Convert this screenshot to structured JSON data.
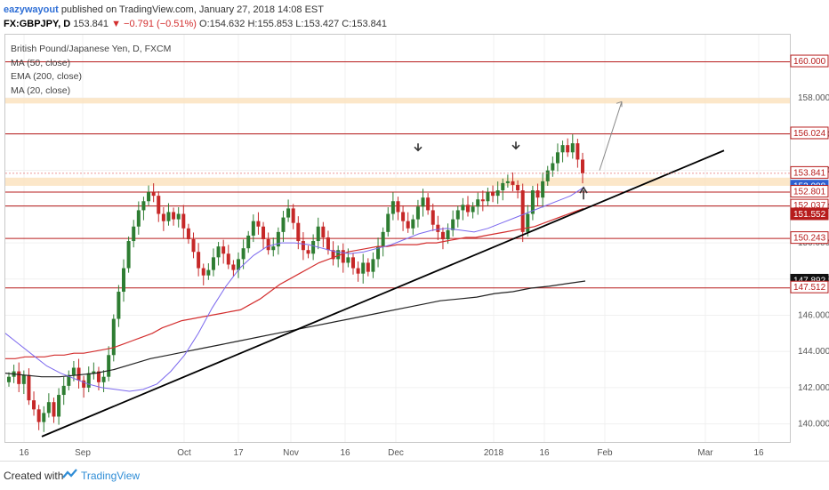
{
  "header": {
    "author": "eazywayout",
    "published_text": "published on TradingView.com, January 27, 2018 14:08 EST",
    "symbol_label": "FX:GBPJPY, D",
    "last": "153.841",
    "change": "▼ −0.791 (−0.51%)",
    "ohlc": "O:154.632 H:155.853 L:153.427 C:153.841"
  },
  "legend": {
    "title": "British Pound/Japanese Yen, D, FXCM",
    "ind1": "MA (50, close)",
    "ind2": "EMA (200, close)",
    "ind3": "MA (20, close)"
  },
  "footer": {
    "created": "Created with",
    "brand": "TradingView"
  },
  "colors": {
    "price_red": "#b71c1c",
    "zone": "#fbe3c0",
    "ma50": "#d32f2f",
    "ema200": "#222222",
    "ma20": "#7b68ee",
    "up": "#2e7d32",
    "down": "#c62828"
  },
  "chart_data": {
    "type": "candlestick",
    "title": "British Pound/Japanese Yen, D, FXCM",
    "xlabel": "",
    "ylabel": "",
    "ylim": [
      138.9,
      161.5
    ],
    "x_ticks": [
      "16",
      "Sep",
      "Oct",
      "17",
      "Nov",
      "16",
      "Dec",
      "2018",
      "16",
      "Feb",
      "Mar",
      "16"
    ],
    "y_ticks": [
      "158.000",
      "156.000",
      "154.000",
      "152.000",
      "150.000",
      "148.000",
      "146.000",
      "144.000",
      "142.000",
      "140.000"
    ],
    "horizontal_levels": [
      160.0,
      156.024,
      152.801,
      152.037,
      150.243,
      147.512
    ],
    "price_labels": [
      {
        "value": 160.0,
        "text": "160.000",
        "style": "red"
      },
      {
        "value": 156.024,
        "text": "156.024",
        "style": "red"
      },
      {
        "value": 153.841,
        "text": "153.841",
        "style": "red"
      },
      {
        "value": 153.088,
        "text": "153.088",
        "style": "blue"
      },
      {
        "value": 152.801,
        "text": "152.801",
        "style": "red"
      },
      {
        "value": 152.037,
        "text": "152.037",
        "style": "red"
      },
      {
        "value": 151.552,
        "text": "151.552",
        "style": "darkred"
      },
      {
        "value": 150.243,
        "text": "150.243",
        "style": "red"
      },
      {
        "value": 147.892,
        "text": "147.892",
        "style": "black"
      },
      {
        "value": 147.512,
        "text": "147.512",
        "style": "red"
      }
    ],
    "zones": [
      [
        157.7,
        158.0
      ],
      [
        153.15,
        153.6
      ]
    ],
    "trendline": [
      [
        0.55,
        139.3
      ],
      [
        12.5,
        155.1
      ]
    ],
    "closes": [
      142.6,
      142.9,
      142.2,
      142.7,
      141.3,
      140.8,
      140.1,
      140.6,
      141.2,
      140.4,
      141.6,
      142.1,
      142.7,
      143.1,
      142.4,
      142.0,
      142.8,
      142.9,
      142.3,
      142.6,
      143.8,
      145.8,
      147.3,
      148.6,
      150.1,
      150.9,
      151.8,
      152.3,
      152.8,
      152.6,
      151.6,
      151.2,
      151.7,
      151.3,
      151.6,
      150.8,
      150.2,
      149.5,
      148.6,
      148.2,
      148.5,
      149.2,
      149.8,
      149.4,
      148.8,
      148.5,
      149.1,
      149.7,
      150.4,
      151.2,
      150.9,
      150.2,
      149.6,
      149.8,
      150.6,
      151.4,
      151.9,
      151.1,
      150.1,
      149.6,
      149.4,
      150.1,
      150.9,
      150.3,
      149.6,
      149.1,
      149.6,
      148.9,
      149.2,
      148.6,
      148.3,
      148.9,
      148.4,
      149.1,
      149.8,
      150.6,
      151.6,
      152.3,
      151.7,
      151.2,
      150.8,
      151.3,
      152.0,
      152.5,
      151.8,
      151.0,
      150.6,
      150.2,
      150.7,
      151.3,
      151.8,
      152.1,
      151.7,
      152.0,
      152.4,
      152.3,
      152.8,
      152.6,
      152.9,
      153.3,
      153.4,
      153.2,
      152.9,
      150.6,
      151.6,
      152.9,
      152.5,
      153.4,
      154.0,
      154.4,
      155.0,
      155.4,
      155.0,
      155.5,
      154.6,
      153.84
    ],
    "ma50": [
      143.6,
      143.6,
      143.7,
      143.7,
      143.7,
      143.8,
      143.8,
      143.9,
      143.9,
      144.0,
      144.1,
      144.2,
      144.4,
      144.6,
      144.8,
      145.0,
      145.3,
      145.5,
      145.7,
      145.8,
      145.9,
      146.0,
      146.1,
      146.2,
      146.3,
      146.6,
      146.9,
      147.3,
      147.7,
      148.0,
      148.3,
      148.6,
      148.9,
      149.1,
      149.3,
      149.5,
      149.6,
      149.7,
      149.8,
      149.8,
      149.9,
      149.9,
      149.9,
      150.0,
      150.0,
      150.1,
      150.2,
      150.3,
      150.3,
      150.4,
      150.5,
      150.6,
      150.7,
      150.8,
      150.9,
      151.1,
      151.3,
      151.5,
      151.7,
      151.9
    ],
    "ema200": [
      142.8,
      142.7,
      142.6,
      142.6,
      142.7,
      142.8,
      143.0,
      143.3,
      143.6,
      143.8,
      144.0,
      144.2,
      144.4,
      144.6,
      144.8,
      145.0,
      145.2,
      145.4,
      145.6,
      145.8,
      146.0,
      146.2,
      146.4,
      146.6,
      146.8,
      146.9,
      147.0,
      147.2,
      147.3,
      147.5,
      147.6,
      147.75,
      147.89
    ],
    "ma20": [
      145.0,
      144.4,
      143.8,
      143.2,
      142.8,
      142.5,
      142.2,
      142.0,
      141.9,
      141.8,
      141.9,
      142.2,
      142.9,
      143.8,
      145.0,
      146.4,
      147.6,
      148.6,
      149.3,
      149.8,
      150.0,
      150.0,
      149.9,
      149.7,
      149.5,
      149.4,
      149.5,
      149.7,
      149.9,
      150.2,
      150.5,
      150.7,
      150.8,
      150.7,
      150.6,
      150.8,
      151.1,
      151.4,
      151.7,
      152.0,
      152.3,
      152.6,
      153.09
    ]
  }
}
